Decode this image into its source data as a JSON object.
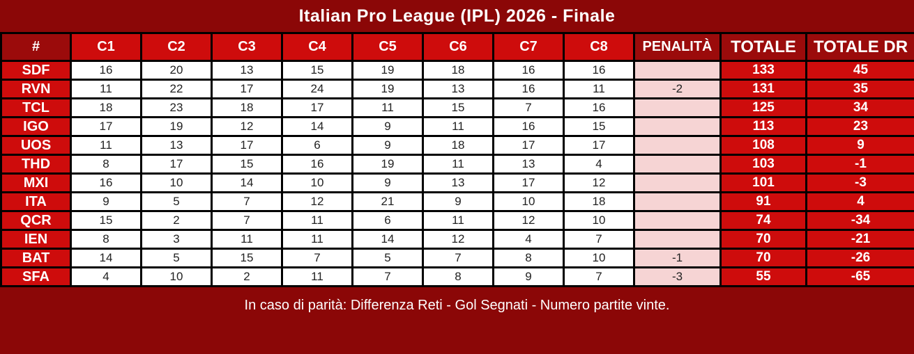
{
  "colors": {
    "page_background": "#8b0707",
    "dark_header_red": "#9b0b0b",
    "bright_red": "#ce0c0c",
    "penalty_pink": "#f6d4d4",
    "cell_white": "#ffffff",
    "border_black": "#000000",
    "text_dark": "#222222",
    "text_white": "#ffffff"
  },
  "chart_data": {
    "type": "table",
    "title": "Italian Pro League (IPL) 2026 - Finale",
    "columns": [
      "#",
      "C1",
      "C2",
      "C3",
      "C4",
      "C5",
      "C6",
      "C7",
      "C8",
      "PENALITÀ",
      "TOTALE",
      "TOTALE DR"
    ],
    "rows": [
      [
        "SDF",
        16,
        20,
        13,
        15,
        19,
        18,
        16,
        16,
        "",
        133,
        45
      ],
      [
        "RVN",
        11,
        22,
        17,
        24,
        19,
        13,
        16,
        11,
        -2,
        131,
        35
      ],
      [
        "TCL",
        18,
        23,
        18,
        17,
        11,
        15,
        7,
        16,
        "",
        125,
        34
      ],
      [
        "IGO",
        17,
        19,
        12,
        14,
        9,
        11,
        16,
        15,
        "",
        113,
        23
      ],
      [
        "UOS",
        11,
        13,
        17,
        6,
        9,
        18,
        17,
        17,
        "",
        108,
        9
      ],
      [
        "THD",
        8,
        17,
        15,
        16,
        19,
        11,
        13,
        4,
        "",
        103,
        -1
      ],
      [
        "MXI",
        16,
        10,
        14,
        10,
        9,
        13,
        17,
        12,
        "",
        101,
        -3
      ],
      [
        "ITA",
        9,
        5,
        7,
        12,
        21,
        9,
        10,
        18,
        "",
        91,
        4
      ],
      [
        "QCR",
        15,
        2,
        7,
        11,
        6,
        11,
        12,
        10,
        "",
        74,
        -34
      ],
      [
        "IEN",
        8,
        3,
        11,
        11,
        14,
        12,
        4,
        7,
        "",
        70,
        -21
      ],
      [
        "BAT",
        14,
        5,
        15,
        7,
        5,
        7,
        8,
        10,
        -1,
        70,
        -26
      ],
      [
        "SFA",
        4,
        10,
        2,
        11,
        7,
        8,
        9,
        7,
        -3,
        55,
        -65
      ]
    ],
    "footer_note": "In caso di parità: Differenza Reti - Gol Segnati - Numero partite vinte."
  }
}
